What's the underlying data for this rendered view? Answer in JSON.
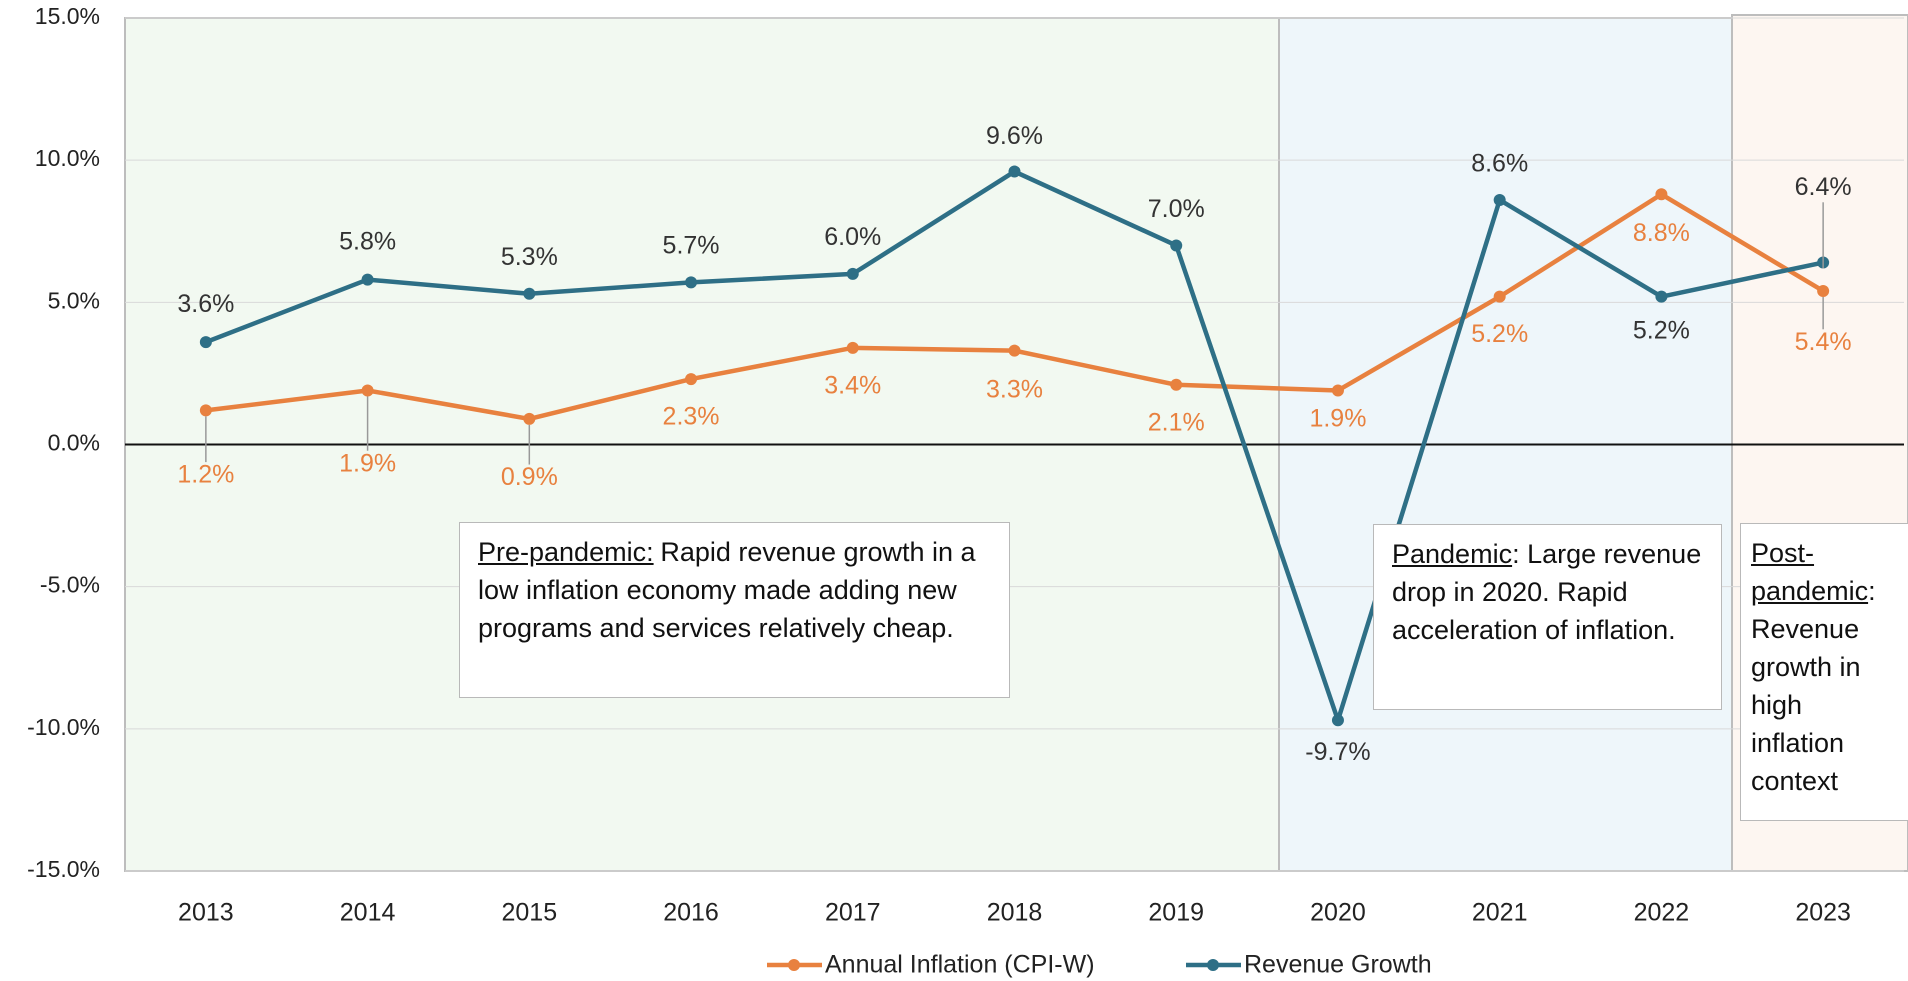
{
  "chart_data": {
    "type": "line",
    "categories": [
      "2013",
      "2014",
      "2015",
      "2016",
      "2017",
      "2018",
      "2019",
      "2020",
      "2021",
      "2022",
      "2023"
    ],
    "series": [
      {
        "name": "Annual Inflation (CPI-W)",
        "color": "#e8813f",
        "values": [
          1.2,
          1.9,
          0.9,
          2.3,
          3.4,
          3.3,
          2.1,
          1.9,
          5.2,
          8.8,
          5.4
        ],
        "value_labels": [
          "1.2%",
          "1.9%",
          "0.9%",
          "2.3%",
          "3.4%",
          "3.3%",
          "2.1%",
          "1.9%",
          "5.2%",
          "8.8%",
          "5.4%"
        ]
      },
      {
        "name": "Revenue Growth",
        "color": "#2e6f86",
        "values": [
          3.6,
          5.8,
          5.3,
          5.7,
          6.0,
          9.6,
          7.0,
          -9.7,
          8.6,
          5.2,
          6.4
        ],
        "value_labels": [
          "3.6%",
          "5.8%",
          "5.3%",
          "5.7%",
          "6.0%",
          "9.6%",
          "7.0%",
          "-9.7%",
          "8.6%",
          "5.2%",
          "6.4%"
        ]
      }
    ],
    "ylim": [
      -15,
      15
    ],
    "yticks": [
      {
        "value": -15,
        "label": "-15.0%"
      },
      {
        "value": -10,
        "label": "-10.0%"
      },
      {
        "value": -5,
        "label": "-5.0%"
      },
      {
        "value": 0,
        "label": "0.0%"
      },
      {
        "value": 5,
        "label": "5.0%"
      },
      {
        "value": 10,
        "label": "10.0%"
      },
      {
        "value": 15,
        "label": "15.0%"
      }
    ],
    "grid": true,
    "legend": "bottom",
    "annotations": [
      {
        "heading": "Pre-pandemic:",
        "text": "Rapid revenue growth in a low inflation economy made adding new programs and services relatively cheap."
      },
      {
        "heading": "Pandemic",
        "text": ": Large revenue drop in 2020. Rapid acceleration of inflation."
      },
      {
        "heading": "Post-pandemic",
        "text": ": Revenue growth in high inflation context"
      }
    ]
  }
}
